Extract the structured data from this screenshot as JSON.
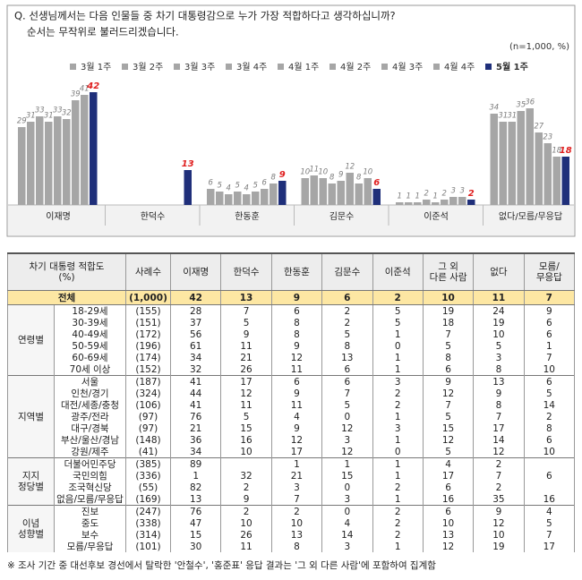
{
  "chart_data": {
    "type": "bar",
    "title": "Q. 선생님께서는 다음 인물들 중 차기 대통령감으로 누가 가장 적합하다고 생각하십니까?",
    "subtitle": "순서는 무작위로 불러드리겠습니다.",
    "note": "(n=1,000, %)",
    "categories": [
      "이재명",
      "한덕수",
      "한동훈",
      "김문수",
      "이준석",
      "없다/모름/무응답"
    ],
    "series": [
      {
        "name": "3월 1주",
        "color": "#a6a6a6",
        "label_color": "#7f7f7f",
        "values": [
          29,
          null,
          6,
          10,
          1,
          34
        ]
      },
      {
        "name": "3월 2주",
        "color": "#a6a6a6",
        "label_color": "#7f7f7f",
        "values": [
          31,
          null,
          5,
          11,
          1,
          31
        ]
      },
      {
        "name": "3월 3주",
        "color": "#a6a6a6",
        "label_color": "#7f7f7f",
        "values": [
          33,
          null,
          4,
          10,
          1,
          31
        ]
      },
      {
        "name": "3월 4주",
        "color": "#a6a6a6",
        "label_color": "#7f7f7f",
        "values": [
          31,
          null,
          5,
          8,
          2,
          35
        ]
      },
      {
        "name": "4월 1주",
        "color": "#a6a6a6",
        "label_color": "#7f7f7f",
        "values": [
          33,
          null,
          4,
          9,
          1,
          36
        ]
      },
      {
        "name": "4월 2주",
        "color": "#a6a6a6",
        "label_color": "#7f7f7f",
        "values": [
          32,
          null,
          5,
          12,
          2,
          27
        ]
      },
      {
        "name": "4월 3주",
        "color": "#a6a6a6",
        "label_color": "#7f7f7f",
        "values": [
          39,
          null,
          6,
          8,
          3,
          23
        ]
      },
      {
        "name": "4월 4주",
        "color": "#a6a6a6",
        "label_color": "#7f7f7f",
        "values": [
          41,
          null,
          8,
          10,
          3,
          18
        ]
      },
      {
        "name": "5월 1주",
        "color": "#1f2f7a",
        "label_color": "#e02020",
        "values": [
          42,
          13,
          9,
          6,
          2,
          18
        ]
      }
    ]
  },
  "table": {
    "header": [
      [
        "차기 대통령 적합도",
        "(%)"
      ],
      [
        "사례수"
      ],
      [
        "이재명"
      ],
      [
        "한덕수"
      ],
      [
        "한동훈"
      ],
      [
        "김문수"
      ],
      [
        "이준석"
      ],
      [
        "그 외",
        "다른 사람"
      ],
      [
        "없다"
      ],
      [
        "모름/",
        "무응답"
      ]
    ],
    "total": {
      "label": "전체",
      "n": "(1,000)",
      "values": [
        42,
        13,
        9,
        6,
        2,
        10,
        11,
        7
      ]
    },
    "groups": [
      {
        "label": [
          "연령별"
        ],
        "rows": [
          {
            "label": "18-29세",
            "n": "(155)",
            "values": [
              28,
              7,
              6,
              2,
              5,
              19,
              24,
              9
            ]
          },
          {
            "label": "30-39세",
            "n": "(151)",
            "values": [
              37,
              5,
              8,
              2,
              5,
              18,
              19,
              6
            ]
          },
          {
            "label": "40-49세",
            "n": "(172)",
            "values": [
              56,
              9,
              8,
              5,
              1,
              7,
              10,
              6
            ]
          },
          {
            "label": "50-59세",
            "n": "(196)",
            "values": [
              61,
              11,
              9,
              8,
              0,
              5,
              5,
              1
            ]
          },
          {
            "label": "60-69세",
            "n": "(174)",
            "values": [
              34,
              21,
              12,
              13,
              1,
              8,
              3,
              7
            ]
          },
          {
            "label": "70세 이상",
            "n": "(152)",
            "values": [
              32,
              26,
              11,
              6,
              1,
              6,
              8,
              10
            ]
          }
        ]
      },
      {
        "label": [
          "지역별"
        ],
        "rows": [
          {
            "label": "서울",
            "n": "(187)",
            "values": [
              41,
              17,
              6,
              6,
              3,
              9,
              13,
              6
            ]
          },
          {
            "label": "인천/경기",
            "n": "(324)",
            "values": [
              44,
              12,
              9,
              7,
              2,
              12,
              9,
              5
            ]
          },
          {
            "label": "대전/세종/충청",
            "n": "(106)",
            "values": [
              41,
              11,
              11,
              5,
              2,
              7,
              8,
              14
            ]
          },
          {
            "label": "광주/전라",
            "n": "(97)",
            "values": [
              76,
              5,
              4,
              0,
              1,
              5,
              7,
              2
            ]
          },
          {
            "label": "대구/경북",
            "n": "(97)",
            "values": [
              21,
              15,
              9,
              12,
              3,
              15,
              17,
              8
            ]
          },
          {
            "label": "부산/울산/경남",
            "n": "(148)",
            "values": [
              36,
              16,
              12,
              3,
              1,
              12,
              14,
              6
            ]
          },
          {
            "label": "강원/제주",
            "n": "(41)",
            "values": [
              34,
              10,
              17,
              12,
              0,
              5,
              12,
              10
            ]
          }
        ]
      },
      {
        "label": [
          "지지",
          "정당별"
        ],
        "rows": [
          {
            "label": "더불어민주당",
            "n": "(385)",
            "values": [
              89,
              null,
              1,
              1,
              1,
              4,
              2,
              null
            ]
          },
          {
            "label": "국민의힘",
            "n": "(336)",
            "values": [
              1,
              32,
              21,
              15,
              1,
              17,
              7,
              6
            ]
          },
          {
            "label": "조국혁신당",
            "n": "(55)",
            "values": [
              82,
              2,
              3,
              0,
              2,
              6,
              2,
              null
            ]
          },
          {
            "label": "없음/모름/무응답",
            "n": "(169)",
            "values": [
              13,
              9,
              7,
              3,
              1,
              16,
              35,
              16
            ]
          }
        ]
      },
      {
        "label": [
          "이념",
          "성향별"
        ],
        "rows": [
          {
            "label": "진보",
            "n": "(247)",
            "values": [
              76,
              2,
              2,
              0,
              2,
              6,
              9,
              4
            ]
          },
          {
            "label": "중도",
            "n": "(338)",
            "values": [
              47,
              10,
              10,
              4,
              2,
              10,
              12,
              5
            ]
          },
          {
            "label": "보수",
            "n": "(314)",
            "values": [
              15,
              26,
              13,
              14,
              2,
              13,
              10,
              7
            ]
          },
          {
            "label": "모름/무응답",
            "n": "(101)",
            "values": [
              30,
              11,
              8,
              3,
              1,
              12,
              19,
              17
            ]
          }
        ]
      }
    ]
  },
  "footnote": "※ 조사 기간 중 대선후보 경선에서 탈락한 '안철수', '홍준표' 응답 결과는 '그 외 다른 사람'에 포함하여 집계함"
}
